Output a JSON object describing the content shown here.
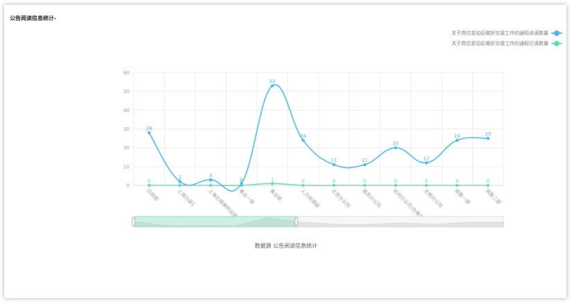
{
  "panel": {
    "title": "公告阅读信息统计-"
  },
  "footer": {
    "source_text": "数据源  公告阅读信息统计"
  },
  "colors": {
    "unread": "#4fb3e0",
    "read": "#67d7b3",
    "grid": "#ececec",
    "axis": "#d8d8d8",
    "text": "#999999"
  },
  "chart_data": {
    "type": "line",
    "title": "",
    "xlabel": "",
    "ylabel": "",
    "ylim": [
      0,
      60
    ],
    "yticks": [
      0,
      10,
      20,
      30,
      40,
      50,
      60
    ],
    "grid": true,
    "smooth": true,
    "legend_position": "top-right",
    "categories": [
      "行政部",
      "上海分部1",
      "上海北城律所出资金",
      "事业一部",
      "事业部",
      "人力资源部",
      "北京分公司",
      "南京分公司",
      "杭州分公司(办事处)",
      "无锡分公司",
      "销售一部",
      "销售二部"
    ],
    "series": [
      {
        "name": "关于岗位变动后做好交接工作的通知未读数量",
        "color": "#4fb3e0",
        "values": [
          28,
          2,
          3,
          1,
          53,
          24,
          11,
          11,
          20,
          12,
          24,
          25
        ]
      },
      {
        "name": "关于岗位变动后做好交接工作的通知已读数量",
        "color": "#67d7b3",
        "values": [
          0,
          0,
          0,
          0,
          1,
          0,
          0,
          0,
          0,
          0,
          0,
          0
        ]
      }
    ],
    "data_zoom": {
      "visible": true,
      "start_percent": 0,
      "end_percent": 44
    }
  }
}
